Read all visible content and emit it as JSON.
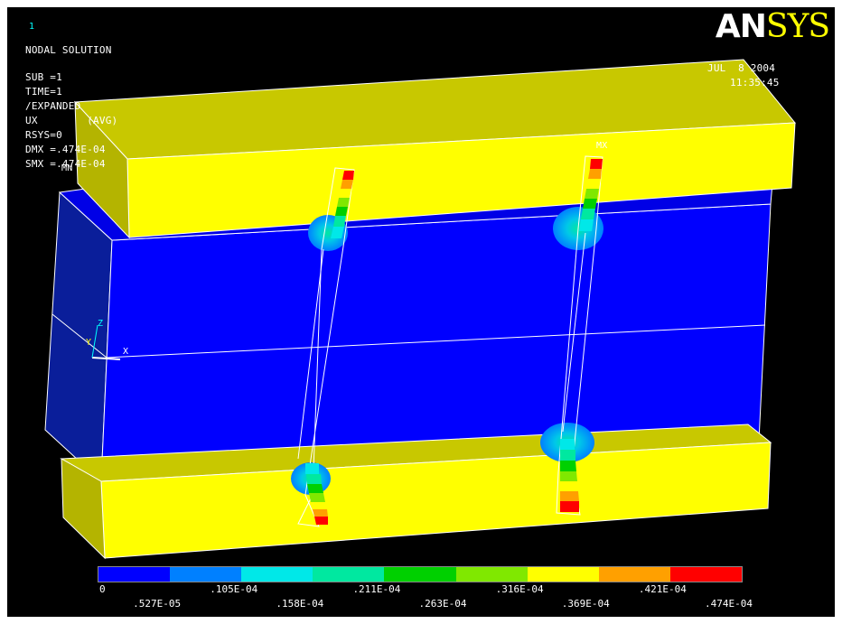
{
  "window": {
    "number": "1"
  },
  "logo": {
    "an": "AN",
    "sys": "SYS"
  },
  "header": {
    "title": "NODAL SOLUTION",
    "lines": [
      "SUB =1",
      "TIME=1",
      "/EXPANDED",
      "UX        (AVG)",
      "RSYS=0",
      "DMX =.474E-04",
      "SMX =.474E-04"
    ],
    "date": "JUL  8 2004",
    "time": "11:35:45"
  },
  "markers": {
    "mn": "MN",
    "mx": "MX"
  },
  "triad": {
    "y": "Y",
    "z": "Z",
    "x": "X"
  },
  "legend": {
    "colors": [
      "#0000ff",
      "#0080ff",
      "#00e8e8",
      "#00e8a0",
      "#00d000",
      "#80e800",
      "#ffff00",
      "#ffa000",
      "#ff0000"
    ],
    "labels_top": [
      "0",
      ".105E-04",
      ".211E-04",
      ".316E-04",
      ".421E-04"
    ],
    "labels_bottom": [
      ".527E-05",
      ".158E-04",
      ".263E-04",
      ".369E-04",
      ".474E-04"
    ]
  }
}
